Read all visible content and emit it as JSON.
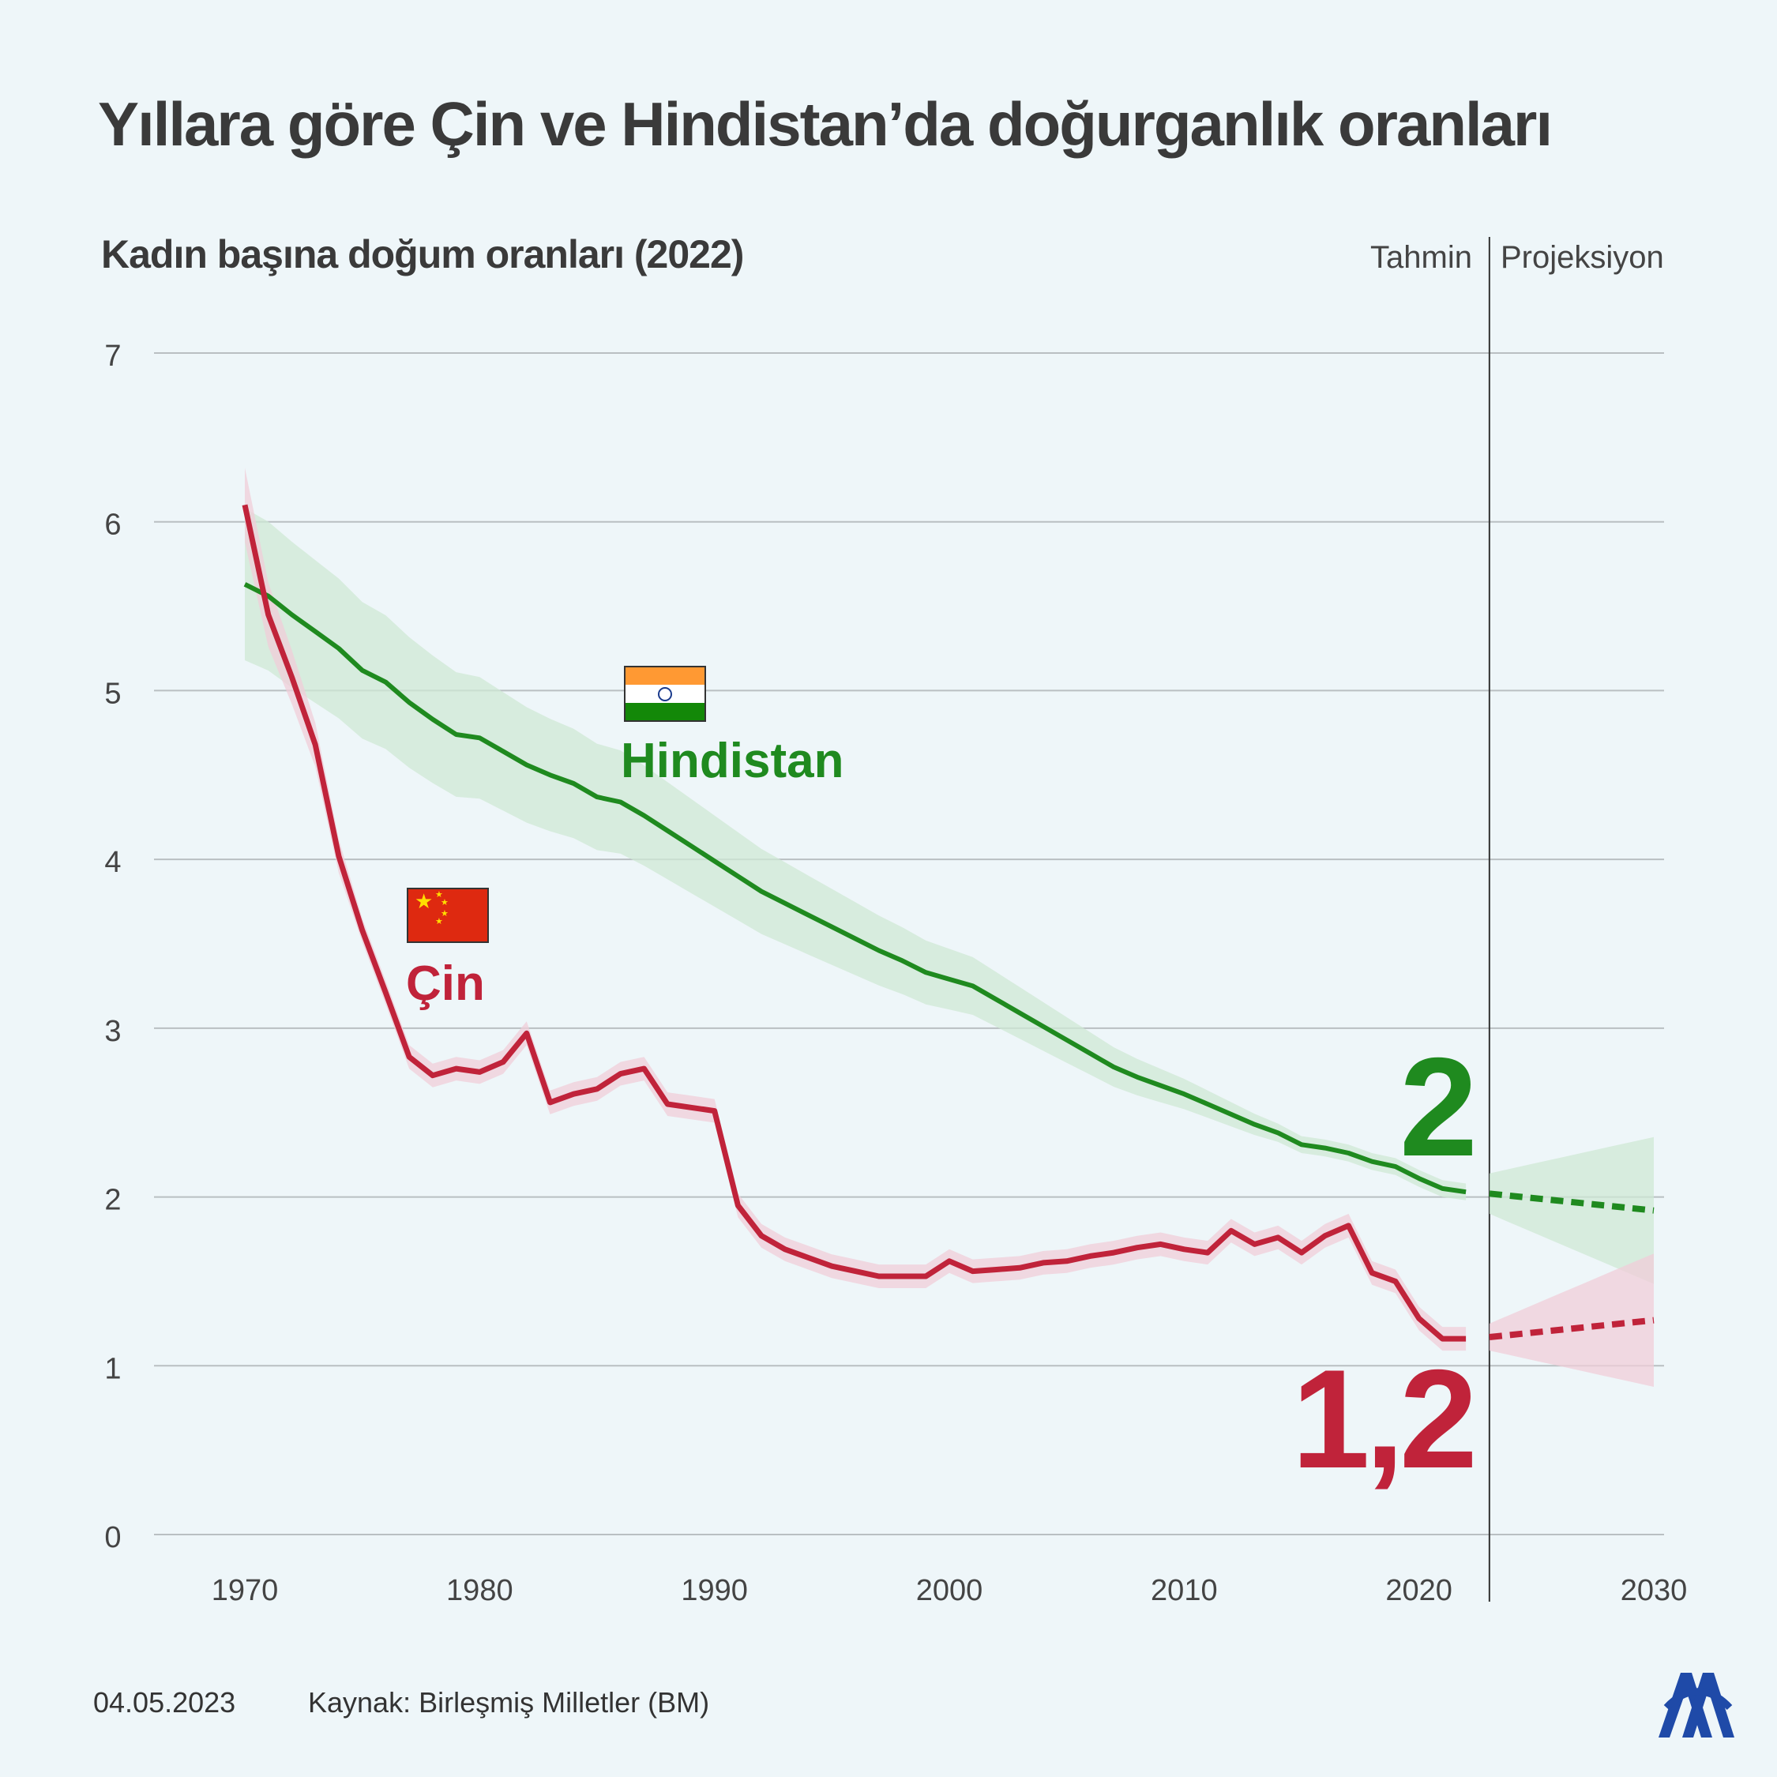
{
  "title": "Yıllara göre Çin ve Hindistan’da doğurganlık oranları",
  "subtitle": "Kadın başına doğum oranları (2022)",
  "phases": {
    "estimate": "Tahmin",
    "projection": "Projeksiyon"
  },
  "footer": {
    "date": "04.05.2023",
    "source": "Kaynak: Birleşmiş Milletler (BM)"
  },
  "logo_icon": "aa-logo-icon",
  "colors": {
    "india": "#1f8a1f",
    "india_band": "#cfe8d4",
    "china": "#c0233a",
    "china_band": "#f0cdd8",
    "grid": "#b9bfc2",
    "divider": "#333333"
  },
  "chart_data": {
    "type": "line",
    "title": "Yıllara göre Çin ve Hindistan’da doğurganlık oranları",
    "ylabel": "Kadın başına doğum oranları (2022)",
    "xlim": [
      1970,
      2030
    ],
    "ylim": [
      0,
      7
    ],
    "y_ticks": [
      0,
      1,
      2,
      3,
      4,
      5,
      6,
      7
    ],
    "x_ticks": [
      1970,
      1980,
      1990,
      2000,
      2010,
      2020,
      2030
    ],
    "y_tick_labels": [
      "0",
      "1",
      "2",
      "3",
      "4",
      "5",
      "6",
      "7"
    ],
    "x_tick_labels": [
      "1970",
      "1980",
      "1990",
      "2000",
      "2010",
      "2020",
      "2030"
    ],
    "estimate_end_year": 2023,
    "grid": true,
    "series": [
      {
        "name": "Hindistan",
        "key": "india",
        "end_label": "2",
        "x": [
          1970,
          1971,
          1972,
          1973,
          1974,
          1975,
          1976,
          1977,
          1978,
          1979,
          1980,
          1981,
          1982,
          1983,
          1984,
          1985,
          1986,
          1987,
          1988,
          1989,
          1990,
          1991,
          1992,
          1993,
          1994,
          1995,
          1996,
          1997,
          1998,
          1999,
          2000,
          2001,
          2002,
          2003,
          2004,
          2005,
          2006,
          2007,
          2008,
          2009,
          2010,
          2011,
          2012,
          2013,
          2014,
          2015,
          2016,
          2017,
          2018,
          2019,
          2020,
          2021,
          2022
        ],
        "y": [
          5.63,
          5.56,
          5.45,
          5.35,
          5.25,
          5.12,
          5.05,
          4.93,
          4.83,
          4.74,
          4.72,
          4.64,
          4.56,
          4.5,
          4.45,
          4.37,
          4.34,
          4.26,
          4.17,
          4.08,
          3.99,
          3.9,
          3.81,
          3.74,
          3.67,
          3.6,
          3.53,
          3.46,
          3.4,
          3.33,
          3.29,
          3.25,
          3.17,
          3.09,
          3.01,
          2.93,
          2.85,
          2.77,
          2.71,
          2.66,
          2.61,
          2.55,
          2.49,
          2.43,
          2.38,
          2.31,
          2.29,
          2.26,
          2.21,
          2.18,
          2.11,
          2.05,
          2.03
        ],
        "projection": {
          "x": [
            2023,
            2030
          ],
          "y": [
            2.02,
            1.92
          ]
        }
      },
      {
        "name": "Çin",
        "key": "china",
        "end_label": "1,2",
        "x": [
          1970,
          1971,
          1972,
          1973,
          1974,
          1975,
          1976,
          1977,
          1978,
          1979,
          1980,
          1981,
          1982,
          1983,
          1984,
          1985,
          1986,
          1987,
          1988,
          1989,
          1990,
          1991,
          1992,
          1993,
          1994,
          1995,
          1996,
          1997,
          1998,
          1999,
          2000,
          2001,
          2002,
          2003,
          2004,
          2005,
          2006,
          2007,
          2008,
          2009,
          2010,
          2011,
          2012,
          2013,
          2014,
          2015,
          2016,
          2017,
          2018,
          2019,
          2020,
          2021,
          2022
        ],
        "y": [
          6.1,
          5.45,
          5.08,
          4.68,
          4.02,
          3.58,
          3.21,
          2.83,
          2.72,
          2.76,
          2.74,
          2.8,
          2.97,
          2.56,
          2.61,
          2.64,
          2.73,
          2.76,
          2.55,
          2.53,
          2.51,
          1.95,
          1.77,
          1.69,
          1.64,
          1.59,
          1.56,
          1.53,
          1.53,
          1.53,
          1.62,
          1.56,
          1.57,
          1.58,
          1.61,
          1.62,
          1.65,
          1.67,
          1.7,
          1.72,
          1.69,
          1.67,
          1.8,
          1.72,
          1.76,
          1.67,
          1.77,
          1.83,
          1.55,
          1.5,
          1.28,
          1.16,
          1.16
        ],
        "projection": {
          "x": [
            2023,
            2030
          ],
          "y": [
            1.17,
            1.27
          ]
        }
      }
    ]
  }
}
